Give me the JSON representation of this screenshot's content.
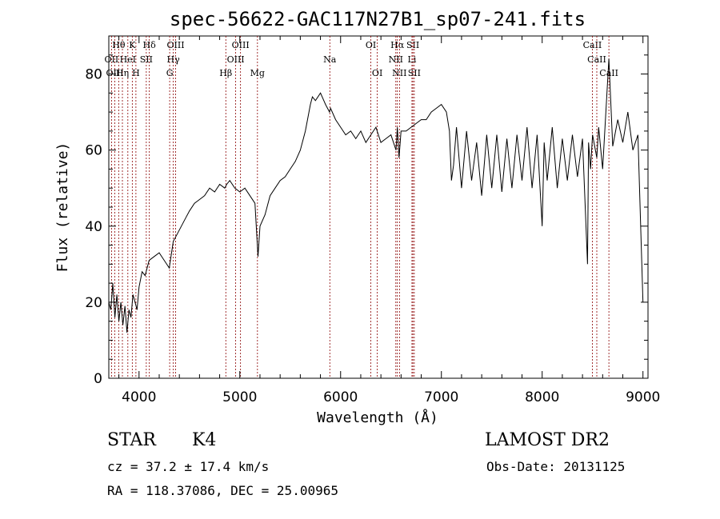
{
  "chart_data": {
    "type": "line",
    "title": "spec-56622-GAC117N27B1_sp07-241.fits",
    "xlabel": "Wavelength (Å)",
    "ylabel": "Flux (relative)",
    "xlim": [
      3700,
      9050
    ],
    "ylim": [
      0,
      90
    ],
    "xticks": [
      4000,
      5000,
      6000,
      7000,
      8000,
      9000
    ],
    "yticks": [
      0,
      20,
      40,
      60,
      80
    ],
    "grid": false,
    "line_color": "#000000",
    "marker_color": "#8b0000",
    "series": [
      {
        "x": [
          3700,
          3720,
          3740,
          3760,
          3780,
          3800,
          3820,
          3840,
          3860,
          3880,
          3900,
          3920,
          3940,
          3960,
          3980,
          4000,
          4030,
          4060,
          4100,
          4150,
          4200,
          4250,
          4300,
          4340,
          4380,
          4420,
          4460,
          4500,
          4550,
          4600,
          4650,
          4700,
          4750,
          4800,
          4850,
          4870,
          4900,
          4950,
          5000,
          5050,
          5100,
          5150,
          5180,
          5200,
          5250,
          5300,
          5350,
          5400,
          5450,
          5500,
          5550,
          5600,
          5650,
          5700,
          5720,
          5750,
          5800,
          5850,
          5890,
          5900,
          5950,
          6000,
          6050,
          6100,
          6150,
          6200,
          6250,
          6300,
          6350,
          6400,
          6450,
          6500,
          6550,
          6563,
          6580,
          6600,
          6650,
          6700,
          6750,
          6800,
          6850,
          6900,
          6950,
          7000,
          7050,
          7080,
          7100,
          7120,
          7150,
          7200,
          7250,
          7300,
          7350,
          7400,
          7450,
          7500,
          7550,
          7600,
          7650,
          7700,
          7750,
          7800,
          7850,
          7900,
          7950,
          8000,
          8020,
          8050,
          8100,
          8150,
          8200,
          8250,
          8300,
          8350,
          8400,
          8450,
          8460,
          8480,
          8500,
          8542,
          8560,
          8600,
          8662,
          8700,
          8750,
          8800,
          8850,
          8900,
          8950,
          9000
        ],
        "y": [
          20,
          18,
          25,
          16,
          22,
          15,
          20,
          14,
          19,
          12,
          18,
          16,
          22,
          20,
          18,
          24,
          28,
          27,
          31,
          32,
          33,
          31,
          29,
          36,
          38,
          40,
          42,
          44,
          46,
          47,
          48,
          50,
          49,
          51,
          50,
          51,
          52,
          50,
          49,
          50,
          48,
          46,
          32,
          40,
          43,
          48,
          50,
          52,
          53,
          55,
          57,
          60,
          65,
          72,
          74,
          73,
          75,
          72,
          70,
          71,
          68,
          66,
          64,
          65,
          63,
          65,
          62,
          64,
          66,
          62,
          63,
          64,
          60,
          66,
          58,
          65,
          65,
          66,
          67,
          68,
          68,
          70,
          71,
          72,
          70,
          65,
          52,
          56,
          66,
          50,
          65,
          52,
          62,
          48,
          64,
          50,
          64,
          49,
          63,
          50,
          64,
          52,
          66,
          50,
          64,
          40,
          62,
          52,
          66,
          50,
          63,
          52,
          64,
          53,
          63,
          30,
          62,
          55,
          64,
          58,
          66,
          55,
          84,
          61,
          68,
          62,
          70,
          60,
          64,
          20
        ],
        "name": ""
      }
    ],
    "line_markers": [
      {
        "row": 0,
        "labels": [
          "Hθ",
          "K",
          "Hδ",
          "OIII",
          "OIII",
          "OI",
          "Hα",
          "SII",
          "CaII"
        ],
        "wavelengths": [
          3798,
          3933,
          4102,
          4363,
          5007,
          6300,
          6563,
          6717,
          8498
        ]
      },
      {
        "row": 1,
        "labels": [
          "OII",
          "HeI",
          "SII",
          "Hγ",
          "OIII",
          "Na",
          "NII",
          "Li",
          "CaII"
        ],
        "wavelengths": [
          3727,
          3889,
          4072,
          4340,
          4959,
          5893,
          6548,
          6708,
          8542
        ]
      },
      {
        "row": 2,
        "labels": [
          "OIII",
          "Hη",
          "H",
          "G",
          "Hβ",
          "Mg",
          "OI",
          "NII",
          "SII",
          "CaII"
        ],
        "wavelengths": [
          3760,
          3835,
          3969,
          4304,
          4861,
          5175,
          6364,
          6584,
          6731,
          8662
        ]
      }
    ]
  },
  "info": {
    "object_type": "STAR",
    "subclass": "K4",
    "survey": "LAMOST DR2",
    "redshift": "cz = 37.2 ± 17.4 km/s",
    "obs_date": "Obs-Date: 20131125",
    "coords": "RA = 118.37086, DEC =  25.00965"
  }
}
